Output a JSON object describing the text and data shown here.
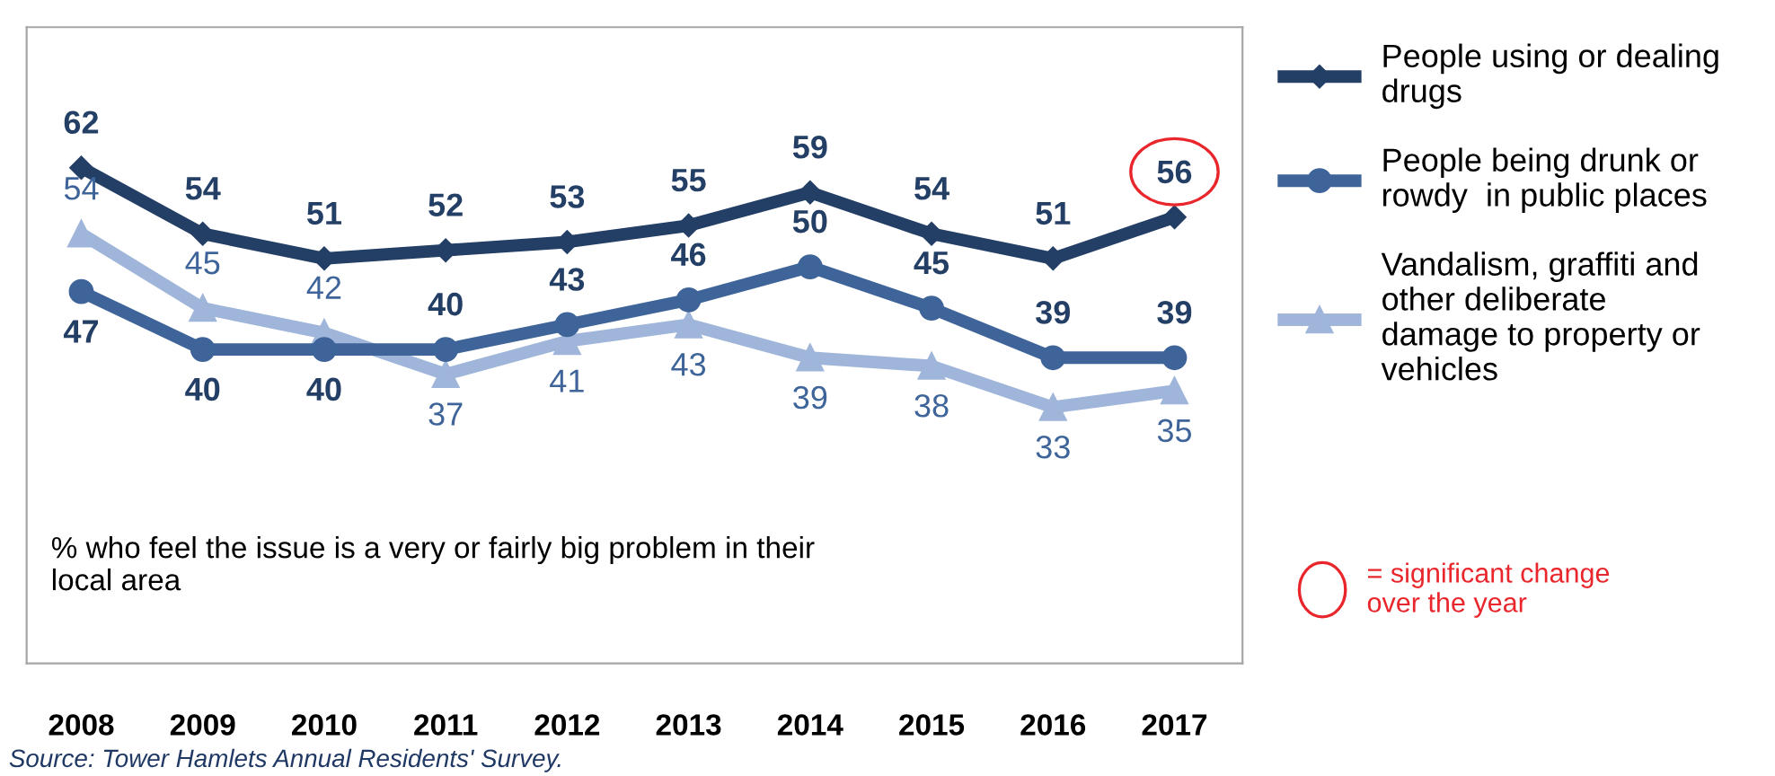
{
  "chart_data": {
    "type": "line",
    "categories": [
      "2008",
      "2009",
      "2010",
      "2011",
      "2012",
      "2013",
      "2014",
      "2015",
      "2016",
      "2017"
    ],
    "series": [
      {
        "name": "People using or dealing\ndrugs",
        "color": "#243f66",
        "marker": "diamond",
        "values": [
          62,
          54,
          51,
          52,
          53,
          55,
          59,
          54,
          51,
          56
        ]
      },
      {
        "name": "People being drunk or\nrowdy  in public places",
        "color": "#3e6499",
        "marker": "circle",
        "values": [
          47,
          40,
          40,
          40,
          43,
          46,
          50,
          45,
          39,
          39
        ]
      },
      {
        "name": "Vandalism, graffiti and\nother deliberate\ndamage to property or\nvehicles",
        "color": "#9fb6da",
        "marker": "triangle",
        "values": [
          54,
          45,
          42,
          37,
          41,
          43,
          39,
          38,
          33,
          35
        ]
      }
    ],
    "data_labels": true,
    "legend": "right",
    "grid": false,
    "line_style": "solid",
    "annotations": [
      "% who feel the issue is a very or fairly big problem in their\nlocal area",
      "= significant change\nover the year",
      "Source: Tower Hamlets Annual Residents' Survey."
    ]
  }
}
